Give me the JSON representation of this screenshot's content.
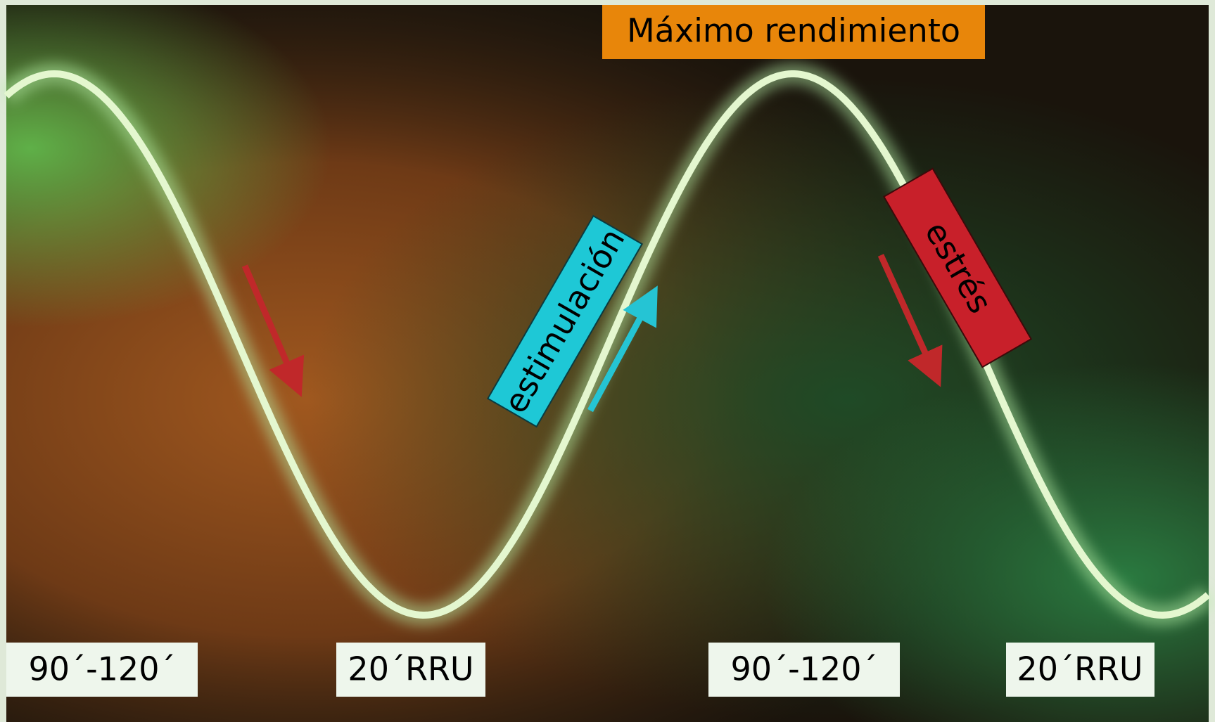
{
  "header": {
    "title": "Máximo rendimiento"
  },
  "annotations": [
    {
      "label": "estimulación"
    },
    {
      "label": "estrés"
    }
  ],
  "phases": [
    {
      "label": "90´-120´"
    },
    {
      "label": "20´RRU"
    },
    {
      "label": "90´-120´"
    },
    {
      "label": "20´RRU"
    }
  ]
}
